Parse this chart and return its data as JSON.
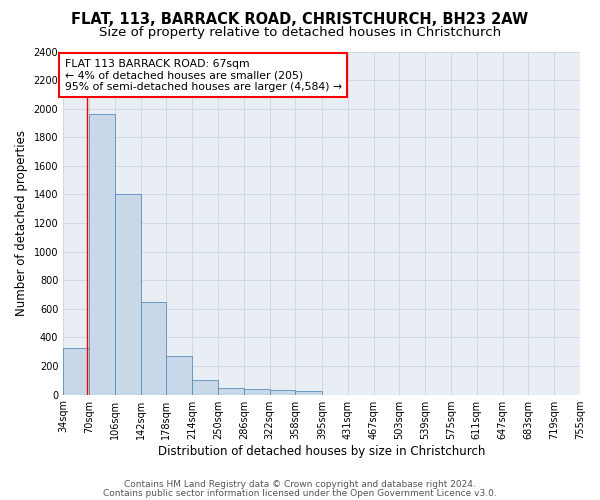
{
  "title1": "FLAT, 113, BARRACK ROAD, CHRISTCHURCH, BH23 2AW",
  "title2": "Size of property relative to detached houses in Christchurch",
  "xlabel": "Distribution of detached houses by size in Christchurch",
  "ylabel": "Number of detached properties",
  "bar_edges": [
    34,
    70,
    106,
    142,
    178,
    214,
    250,
    286,
    322,
    358,
    395,
    431,
    467,
    503,
    539,
    575,
    611,
    647,
    683,
    719,
    755
  ],
  "bar_heights": [
    325,
    1960,
    1400,
    648,
    270,
    100,
    48,
    40,
    35,
    22,
    0,
    0,
    0,
    0,
    0,
    0,
    0,
    0,
    0,
    0
  ],
  "bar_color": "#c8d8e8",
  "bar_edge_color": "#5b8db8",
  "property_line_x": 67,
  "annotation_text": "FLAT 113 BARRACK ROAD: 67sqm\n← 4% of detached houses are smaller (205)\n95% of semi-detached houses are larger (4,584) →",
  "ylim": [
    0,
    2400
  ],
  "xlim": [
    34,
    755
  ],
  "grid_color": "#d0d8e0",
  "bg_color": "#e8eef4",
  "footer1": "Contains HM Land Registry data © Crown copyright and database right 2024.",
  "footer2": "Contains public sector information licensed under the Open Government Licence v3.0.",
  "title_fontsize": 10.5,
  "subtitle_fontsize": 9.5,
  "axis_label_fontsize": 8.5,
  "tick_label_fontsize": 7,
  "annot_fontsize": 7.8,
  "footer_fontsize": 6.5
}
